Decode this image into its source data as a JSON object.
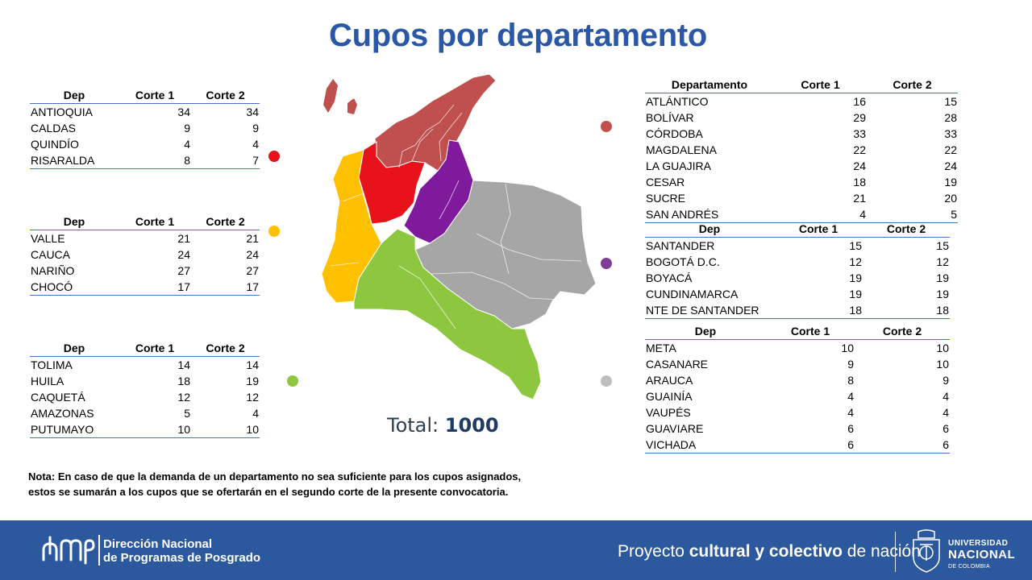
{
  "title": "Cupos por departamento",
  "colors": {
    "title": "#2a58a6",
    "red_region": "#e8121b",
    "yellow_region": "#ffc000",
    "green_region": "#8dc63f",
    "dark_red_region": "#c0504d",
    "purple_region": "#7f1a9c",
    "gray_region": "#a6a6a6",
    "footer": "#2c599d",
    "table_rule": "#4472c4"
  },
  "tables": {
    "red": {
      "headers": [
        "Dep",
        "Corte 1",
        "Corte 2"
      ],
      "rows": [
        [
          "ANTIOQUIA",
          "34",
          "34"
        ],
        [
          "CALDAS",
          "9",
          "9"
        ],
        [
          "QUINDÍO",
          "4",
          "4"
        ],
        [
          "RISARALDA",
          "8",
          "7"
        ]
      ]
    },
    "yellow": {
      "headers": [
        "Dep",
        "Corte 1",
        "Corte 2"
      ],
      "rows": [
        [
          "VALLE",
          "21",
          "21"
        ],
        [
          "CAUCA",
          "24",
          "24"
        ],
        [
          "NARIÑO",
          "27",
          "27"
        ],
        [
          "CHOCÓ",
          "17",
          "17"
        ]
      ]
    },
    "green": {
      "headers": [
        "Dep",
        "Corte 1",
        "Corte 2"
      ],
      "rows": [
        [
          "TOLIMA",
          "14",
          "14"
        ],
        [
          "HUILA",
          "18",
          "19"
        ],
        [
          "CAQUETÁ",
          "12",
          "12"
        ],
        [
          "AMAZONAS",
          "5",
          "4"
        ],
        [
          "PUTUMAYO",
          "10",
          "10"
        ]
      ]
    },
    "caribe": {
      "headers": [
        "Departamento",
        "Corte 1",
        "Corte 2"
      ],
      "rows": [
        [
          "ATLÁNTICO",
          "16",
          "15"
        ],
        [
          "BOLÍVAR",
          "29",
          "28"
        ],
        [
          "CÓRDOBA",
          "33",
          "33"
        ],
        [
          "MAGDALENA",
          "22",
          "22"
        ],
        [
          "LA GUAJIRA",
          "24",
          "24"
        ],
        [
          "CESAR",
          "18",
          "19"
        ],
        [
          "SUCRE",
          "21",
          "20"
        ],
        [
          "SAN ANDRÉS",
          "4",
          "5"
        ]
      ]
    },
    "purple": {
      "headers": [
        "Dep",
        "Corte 1",
        "Corte 2"
      ],
      "rows": [
        [
          "SANTANDER",
          "15",
          "15"
        ],
        [
          "BOGOTÁ D.C.",
          "12",
          "12"
        ],
        [
          "BOYACÁ",
          "19",
          "19"
        ],
        [
          "CUNDINAMARCA",
          "19",
          "19"
        ],
        [
          "NTE DE SANTANDER",
          "18",
          "18"
        ]
      ]
    },
    "gray": {
      "headers": [
        "Dep",
        "Corte 1",
        "Corte 2"
      ],
      "rows": [
        [
          "META",
          "10",
          "10"
        ],
        [
          "CASANARE",
          "9",
          "10"
        ],
        [
          "ARAUCA",
          "8",
          "9"
        ],
        [
          "GUAINÍA",
          "4",
          "4"
        ],
        [
          "VAUPÉS",
          "4",
          "4"
        ],
        [
          "GUAVIARE",
          "6",
          "6"
        ],
        [
          "VICHADA",
          "6",
          "6"
        ]
      ]
    }
  },
  "total": {
    "label": "Total:",
    "value": "1000"
  },
  "note": {
    "line1": "Nota: En caso de que la demanda de un departamento no sea suficiente para los cupos asignados,",
    "line2": "estos se sumarán a los cupos que se ofertarán en el segundo corte de la presente convocatoria."
  },
  "footer": {
    "dnpp_line1": "Dirección Nacional",
    "dnpp_line2": "de Programas de Posgrado",
    "slogan_a": "Proyecto ",
    "slogan_b": "cultural y colectivo",
    "slogan_c": " de nación",
    "unal_line1": "UNIVERSIDAD",
    "unal_line2": "NACIONAL",
    "unal_line3": "DE COLOMBIA"
  }
}
